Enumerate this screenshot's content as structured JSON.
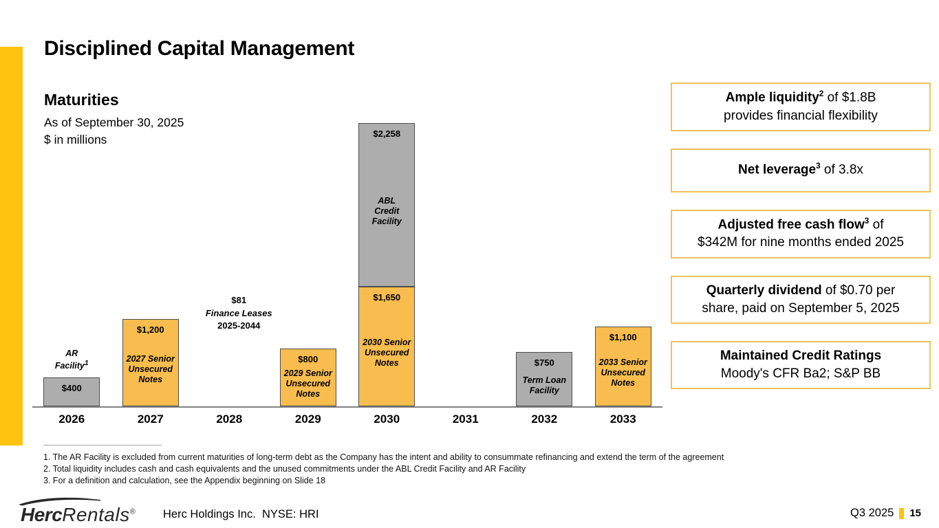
{
  "page": {
    "title": "Disciplined Capital Management",
    "accent_color": "#FFC20E"
  },
  "chart_header": {
    "title": "Maturities",
    "subtitle1": "As of September 30, 2025",
    "subtitle2": "$ in millions"
  },
  "chart_data": {
    "type": "bar",
    "stacked": true,
    "title": "Maturities",
    "subtitle": "As of September 30, 2025",
    "unit": "$ in millions",
    "xlabel": "Year",
    "ylabel": "$ in millions",
    "ylim": [
      0,
      3908
    ],
    "grid": false,
    "categories": [
      "2026",
      "2027",
      "2028",
      "2029",
      "2030",
      "2031",
      "2032",
      "2033"
    ],
    "colors": {
      "yellow": "#F8BD4E",
      "gray": "#ADADAD",
      "border": "#4D4D4D",
      "axis": "#808080"
    },
    "bars": [
      {
        "year": "2026",
        "segments": [
          {
            "value": 400,
            "value_label": "$400",
            "name": "AR Facility",
            "footnote_sup": "1",
            "name_lines": [
              "AR",
              "Facility"
            ],
            "color": "gray",
            "name_position": "above"
          }
        ]
      },
      {
        "year": "2027",
        "segments": [
          {
            "value": 1200,
            "value_label": "$1,200",
            "name": "2027 Senior Unsecured Notes",
            "name_lines": [
              "2027 Senior",
              "Unsecured",
              "Notes"
            ],
            "color": "yellow",
            "name_position": "inside"
          }
        ]
      },
      {
        "year": "2028",
        "segments": [],
        "annotation": {
          "value": 81,
          "lines": [
            "$81",
            "Finance Leases",
            "2025-2044"
          ]
        }
      },
      {
        "year": "2029",
        "segments": [
          {
            "value": 800,
            "value_label": "$800",
            "name": "2029 Senior Unsecured Notes",
            "name_lines": [
              "2029 Senior",
              "Unsecured",
              "Notes"
            ],
            "color": "yellow",
            "name_position": "inside"
          }
        ]
      },
      {
        "year": "2030",
        "segments": [
          {
            "value": 1650,
            "value_label": "$1,650",
            "name": "2030 Senior Unsecured Notes",
            "name_lines": [
              "2030 Senior",
              "Unsecured",
              "Notes"
            ],
            "color": "yellow",
            "name_position": "inside"
          },
          {
            "value": 2258,
            "value_label": "$2,258",
            "name": "ABL Credit Facility",
            "name_lines": [
              "ABL",
              "Credit",
              "Facility"
            ],
            "color": "gray",
            "name_position": "inside"
          }
        ]
      },
      {
        "year": "2031",
        "segments": []
      },
      {
        "year": "2032",
        "segments": [
          {
            "value": 750,
            "value_label": "$750",
            "name": "Term Loan Facility",
            "name_lines": [
              "Term Loan",
              "Facility"
            ],
            "color": "gray",
            "name_position": "inside"
          }
        ]
      },
      {
        "year": "2033",
        "segments": [
          {
            "value": 1100,
            "value_label": "$1,100",
            "name": "2033 Senior Unsecured Notes",
            "name_lines": [
              "2033 Senior",
              "Unsecured",
              "Notes"
            ],
            "color": "yellow",
            "name_position": "inside"
          }
        ]
      }
    ]
  },
  "callouts": [
    {
      "segments": [
        {
          "text": "Ample liquidity",
          "bold": true
        },
        {
          "text": "2",
          "bold": true,
          "sup": true
        },
        {
          "text": " of $1.8B"
        },
        {
          "br": true
        },
        {
          "text": "provides financial flexibility"
        }
      ]
    },
    {
      "segments": [
        {
          "text": "Net leverage",
          "bold": true
        },
        {
          "text": "3",
          "bold": true,
          "sup": true
        },
        {
          "text": " of 3.8x"
        }
      ]
    },
    {
      "segments": [
        {
          "text": "Adjusted free cash flow",
          "bold": true
        },
        {
          "text": "3",
          "bold": true,
          "sup": true
        },
        {
          "text": " of"
        },
        {
          "br": true
        },
        {
          "text": "$342M for nine months ended 2025"
        }
      ]
    },
    {
      "segments": [
        {
          "text": "Quarterly dividend",
          "bold": true
        },
        {
          "text": " of $0.70 per"
        },
        {
          "br": true
        },
        {
          "text": "share, paid on September 5, 2025"
        }
      ]
    },
    {
      "segments": [
        {
          "text": "Maintained Credit Ratings",
          "bold": true
        },
        {
          "br": true
        },
        {
          "text": "Moody's CFR Ba2; S&P BB"
        }
      ]
    }
  ],
  "footnotes": [
    "1. The AR Facility is excluded from current maturities of long-term debt as the Company has the intent and ability to consummate refinancing and extend the term of the agreement",
    "2. Total liquidity includes cash and cash equivalents and the unused commitments under the ABL Credit Facility and AR Facility",
    "3. For a definition and calculation, see the Appendix beginning on Slide 18"
  ],
  "footer": {
    "logo_herc": "Herc",
    "logo_rentals": "Rentals",
    "logo_reg": "®",
    "company_line": "Herc Holdings Inc.  NYSE: HRI",
    "period": "Q3 2025",
    "page_number": "15"
  }
}
